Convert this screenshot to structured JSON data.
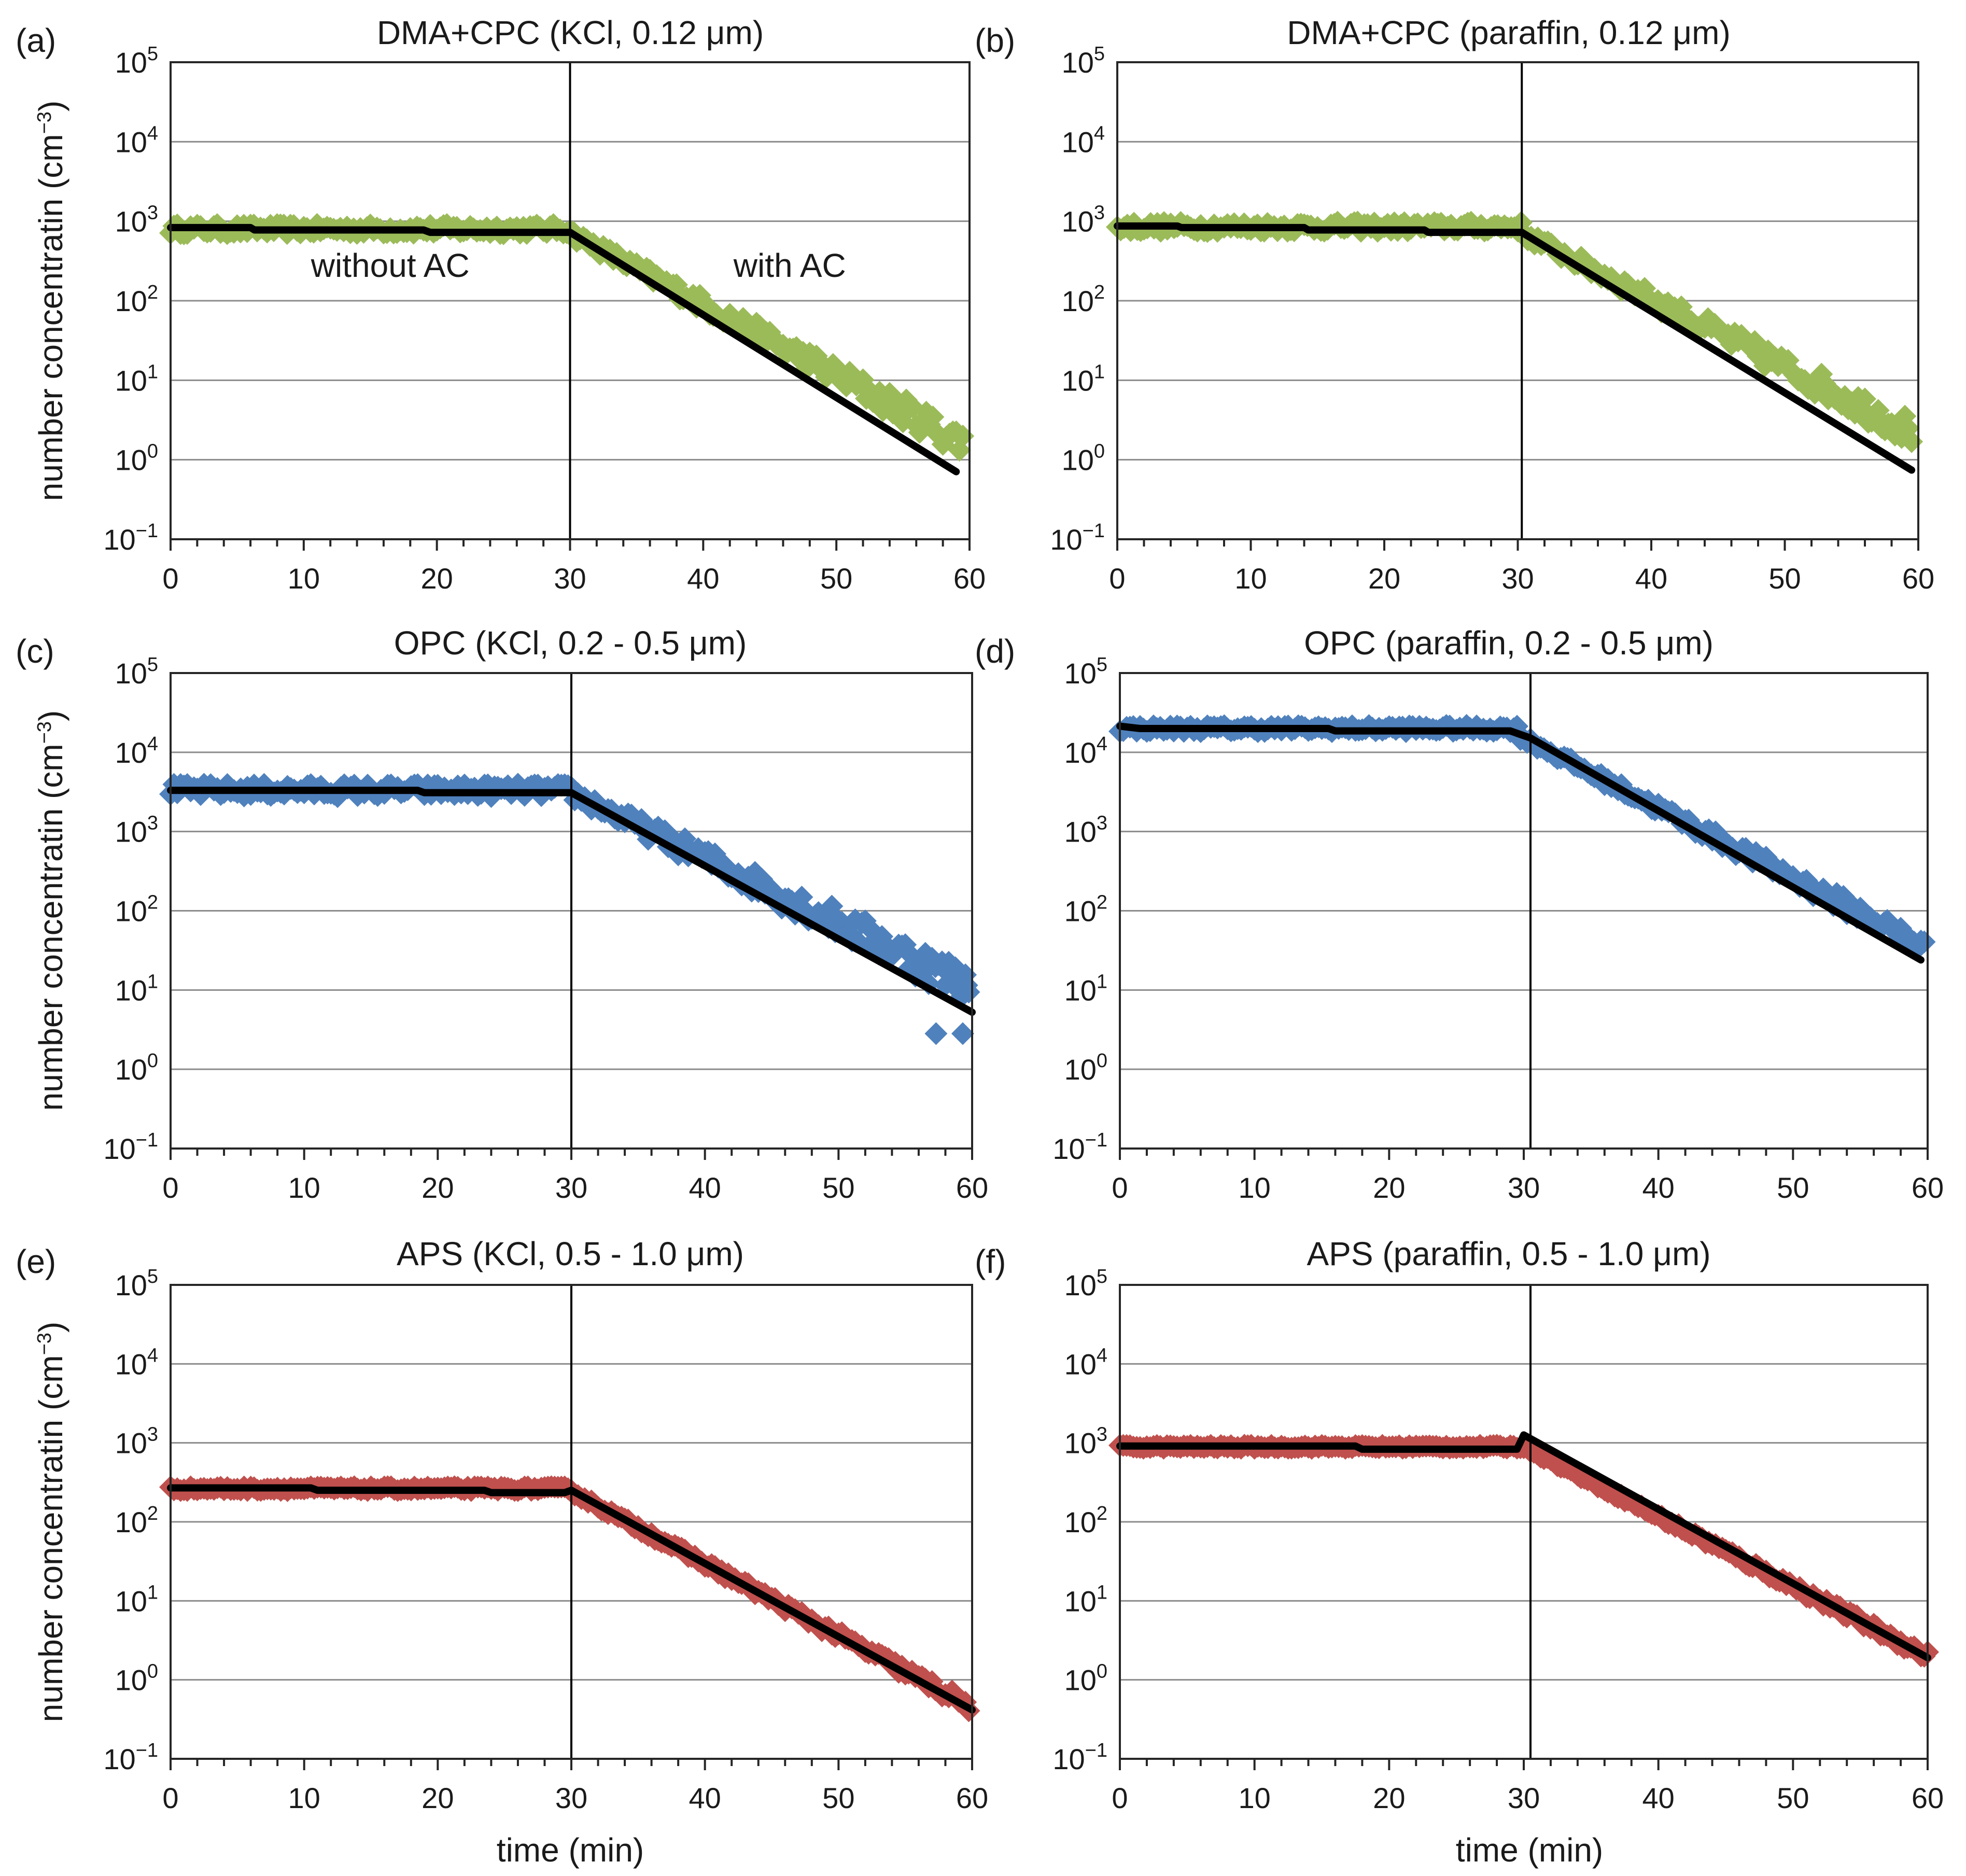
{
  "figure": {
    "ylabel_text": "number concentratin (cm",
    "ylabel_exp": "−3",
    "ylabel_close": ")",
    "xlabel": "time (min)"
  },
  "chart_data": [
    {
      "id": "a",
      "panel_label": "(a)",
      "type": "scatter",
      "title": "DMA+CPC (KCl, 0.12 μm)",
      "xlabel": "",
      "ylabel": "number concentratin (cm−3)",
      "xlim": [
        0,
        60
      ],
      "xticks": [
        0,
        10,
        20,
        30,
        40,
        50,
        60
      ],
      "ylim_exponent": [
        -1,
        5
      ],
      "yticks": [
        {
          "base": "10",
          "exp": "−1"
        },
        {
          "base": "10",
          "exp": "0"
        },
        {
          "base": "10",
          "exp": "1"
        },
        {
          "base": "10",
          "exp": "2"
        },
        {
          "base": "10",
          "exp": "3"
        },
        {
          "base": "10",
          "exp": "4"
        },
        {
          "base": "10",
          "exp": "5"
        }
      ],
      "grid": true,
      "switch_time": 30,
      "annotations": [
        {
          "text": "without  AC",
          "x": 16.5,
          "y": 2.3
        },
        {
          "text": "with AC",
          "x": 46.5,
          "y": 2.3
        }
      ],
      "series": [
        {
          "name": "measured",
          "kind": "markers",
          "color": "#9bbb59",
          "plateau_log10": 2.9,
          "plateau_end": 30,
          "decay_start_log10": 2.85,
          "end_time": 59.5,
          "end_log10": 0.22,
          "noise": 0.06
        },
        {
          "name": "fit",
          "kind": "line",
          "color": "#000000",
          "points": [
            [
              0,
              2.92
            ],
            [
              6,
              2.92
            ],
            [
              6.3,
              2.89
            ],
            [
              19,
              2.89
            ],
            [
              19.5,
              2.86
            ],
            [
              30,
              2.86
            ],
            [
              59,
              -0.15
            ]
          ]
        }
      ]
    },
    {
      "id": "b",
      "panel_label": "(b)",
      "type": "scatter",
      "title": "DMA+CPC (paraffin, 0.12 μm)",
      "xlabel": "",
      "ylabel": "",
      "xlim": [
        0,
        60
      ],
      "xticks": [
        0,
        10,
        20,
        30,
        40,
        50,
        60
      ],
      "ylim_exponent": [
        -1,
        5
      ],
      "yticks": [
        {
          "base": "10",
          "exp": "−1"
        },
        {
          "base": "10",
          "exp": "0"
        },
        {
          "base": "10",
          "exp": "1"
        },
        {
          "base": "10",
          "exp": "2"
        },
        {
          "base": "10",
          "exp": "3"
        },
        {
          "base": "10",
          "exp": "4"
        },
        {
          "base": "10",
          "exp": "5"
        }
      ],
      "grid": true,
      "switch_time": 30.3,
      "annotations": [],
      "series": [
        {
          "name": "measured",
          "kind": "markers",
          "color": "#9bbb59",
          "plateau_log10": 2.93,
          "plateau_end": 30.3,
          "decay_start_log10": 2.85,
          "end_time": 59.5,
          "end_log10": 0.36,
          "noise": 0.06
        },
        {
          "name": "fit",
          "kind": "line",
          "color": "#000000",
          "points": [
            [
              0,
              2.94
            ],
            [
              4.5,
              2.94
            ],
            [
              4.8,
              2.92
            ],
            [
              14,
              2.92
            ],
            [
              14.3,
              2.89
            ],
            [
              23,
              2.89
            ],
            [
              23.3,
              2.86
            ],
            [
              30.3,
              2.86
            ],
            [
              59.5,
              -0.13
            ]
          ]
        }
      ]
    },
    {
      "id": "c",
      "panel_label": "(c)",
      "type": "scatter",
      "title": "OPC (KCl, 0.2 - 0.5 μm)",
      "xlabel": "",
      "ylabel": "number concentratin (cm−3)",
      "xlim": [
        0,
        60
      ],
      "xticks": [
        0,
        10,
        20,
        30,
        40,
        50,
        60
      ],
      "ylim_exponent": [
        -1,
        5
      ],
      "yticks": [
        {
          "base": "10",
          "exp": "−1"
        },
        {
          "base": "10",
          "exp": "0"
        },
        {
          "base": "10",
          "exp": "1"
        },
        {
          "base": "10",
          "exp": "2"
        },
        {
          "base": "10",
          "exp": "3"
        },
        {
          "base": "10",
          "exp": "4"
        },
        {
          "base": "10",
          "exp": "5"
        }
      ],
      "grid": true,
      "switch_time": 30,
      "annotations": [],
      "series": [
        {
          "name": "measured",
          "kind": "markers",
          "color": "#4f81bd",
          "plateau_log10": 3.52,
          "plateau_end": 30,
          "decay_start_log10": 3.48,
          "end_time": 59.8,
          "end_log10": 1.05,
          "noise": 0.08,
          "outliers": [
            [
              57.3,
              0.45
            ],
            [
              59.3,
              0.45
            ],
            [
              55.8,
              1.2
            ],
            [
              57.8,
              1.28
            ],
            [
              58.8,
              1.2
            ],
            [
              59.6,
              1.06
            ]
          ]
        },
        {
          "name": "fit",
          "kind": "line",
          "color": "#000000",
          "points": [
            [
              0,
              3.52
            ],
            [
              18.5,
              3.52
            ],
            [
              19,
              3.49
            ],
            [
              30,
              3.49
            ],
            [
              60,
              0.72
            ]
          ]
        }
      ]
    },
    {
      "id": "d",
      "panel_label": "(d)",
      "type": "scatter",
      "title": "OPC (paraffin, 0.2 - 0.5 μm)",
      "xlabel": "",
      "ylabel": "",
      "xlim": [
        0,
        60
      ],
      "xticks": [
        0,
        10,
        20,
        30,
        40,
        50,
        60
      ],
      "ylim_exponent": [
        -1,
        5
      ],
      "yticks": [
        {
          "base": "10",
          "exp": "−1"
        },
        {
          "base": "10",
          "exp": "0"
        },
        {
          "base": "10",
          "exp": "1"
        },
        {
          "base": "10",
          "exp": "2"
        },
        {
          "base": "10",
          "exp": "3"
        },
        {
          "base": "10",
          "exp": "4"
        },
        {
          "base": "10",
          "exp": "5"
        }
      ],
      "grid": true,
      "switch_time": 30.5,
      "annotations": [],
      "series": [
        {
          "name": "measured",
          "kind": "markers",
          "color": "#4f81bd",
          "plateau_log10": 4.3,
          "plateau_end": 29.5,
          "decay_start_log10": 4.22,
          "end_time": 59.8,
          "end_log10": 1.55,
          "noise": 0.04
        },
        {
          "name": "fit",
          "kind": "line",
          "color": "#000000",
          "points": [
            [
              0,
              4.33
            ],
            [
              1.5,
              4.3
            ],
            [
              15.5,
              4.3
            ],
            [
              16,
              4.27
            ],
            [
              29,
              4.27
            ],
            [
              30.5,
              4.18
            ],
            [
              59.5,
              1.38
            ]
          ]
        }
      ]
    },
    {
      "id": "e",
      "panel_label": "(e)",
      "type": "scatter",
      "title": "APS (KCl, 0.5 - 1.0 μm)",
      "xlabel": "time (min)",
      "ylabel": "number concentratin (cm−3)",
      "xlim": [
        0,
        60
      ],
      "xticks": [
        0,
        10,
        20,
        30,
        40,
        50,
        60
      ],
      "ylim_exponent": [
        -1,
        5
      ],
      "yticks": [
        {
          "base": "10",
          "exp": "−1"
        },
        {
          "base": "10",
          "exp": "0"
        },
        {
          "base": "10",
          "exp": "1"
        },
        {
          "base": "10",
          "exp": "2"
        },
        {
          "base": "10",
          "exp": "3"
        },
        {
          "base": "10",
          "exp": "4"
        },
        {
          "base": "10",
          "exp": "5"
        }
      ],
      "grid": true,
      "switch_time": 30,
      "annotations": [],
      "series": [
        {
          "name": "measured",
          "kind": "markers",
          "color": "#c0504d",
          "plateau_log10": 2.42,
          "plateau_end": 30,
          "decay_start_log10": 2.38,
          "end_time": 59.8,
          "end_log10": -0.33,
          "noise": 0.025
        },
        {
          "name": "fit",
          "kind": "line",
          "color": "#000000",
          "points": [
            [
              0,
              2.43
            ],
            [
              10.5,
              2.43
            ],
            [
              11,
              2.4
            ],
            [
              23.5,
              2.4
            ],
            [
              24,
              2.37
            ],
            [
              29.5,
              2.37
            ],
            [
              30,
              2.4
            ],
            [
              60,
              -0.38
            ]
          ]
        }
      ]
    },
    {
      "id": "f",
      "panel_label": "(f)",
      "type": "scatter",
      "title": "APS (paraffin, 0.5 - 1.0 μm)",
      "xlabel": "time (min)",
      "ylabel": "",
      "xlim": [
        0,
        60
      ],
      "xticks": [
        0,
        10,
        20,
        30,
        40,
        50,
        60
      ],
      "ylim_exponent": [
        -1,
        5
      ],
      "yticks": [
        {
          "base": "10",
          "exp": "−1"
        },
        {
          "base": "10",
          "exp": "0"
        },
        {
          "base": "10",
          "exp": "1"
        },
        {
          "base": "10",
          "exp": "2"
        },
        {
          "base": "10",
          "exp": "3"
        },
        {
          "base": "10",
          "exp": "4"
        },
        {
          "base": "10",
          "exp": "5"
        }
      ],
      "grid": true,
      "switch_time": 30.5,
      "annotations": [],
      "series": [
        {
          "name": "measured",
          "kind": "markers",
          "color": "#c0504d",
          "plateau_log10": 2.95,
          "plateau_end": 29.8,
          "decay_start_log10": 2.97,
          "end_time": 60,
          "end_log10": 0.3,
          "noise": 0.02
        },
        {
          "name": "fit",
          "kind": "line",
          "color": "#000000",
          "points": [
            [
              0,
              2.96
            ],
            [
              17.5,
              2.96
            ],
            [
              18,
              2.92
            ],
            [
              29.5,
              2.92
            ],
            [
              30,
              3.1
            ],
            [
              60,
              0.28
            ]
          ]
        }
      ]
    }
  ]
}
